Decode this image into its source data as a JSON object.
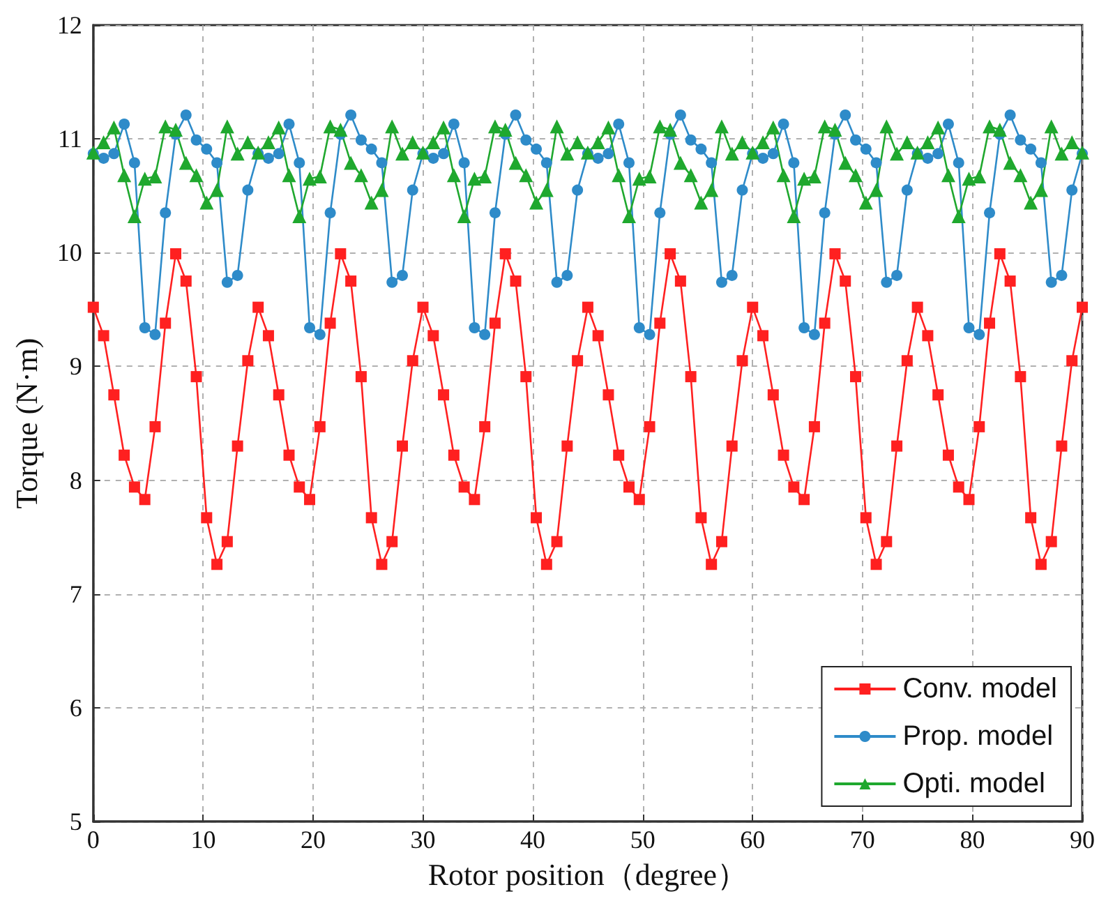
{
  "chart_data": {
    "type": "line",
    "xlabel": "Rotor position（degree）",
    "ylabel": "Torque (N·m)",
    "x": [
      0,
      0.9375,
      1.875,
      2.8125,
      3.75,
      4.6875,
      5.625,
      6.5625,
      7.5,
      8.4375,
      9.375,
      10.3125,
      11.25,
      12.1875,
      13.125,
      14.0625,
      15,
      15.9375,
      16.875,
      17.8125,
      18.75,
      19.6875,
      20.625,
      21.5625,
      22.5,
      23.4375,
      24.375,
      25.3125,
      26.25,
      27.1875,
      28.125,
      29.0625,
      30,
      30.9375,
      31.875,
      32.8125,
      33.75,
      34.6875,
      35.625,
      36.5625,
      37.5,
      38.4375,
      39.375,
      40.3125,
      41.25,
      42.1875,
      43.125,
      44.0625,
      45,
      45.9375,
      46.875,
      47.8125,
      48.75,
      49.6875,
      50.625,
      51.5625,
      52.5,
      53.4375,
      54.375,
      55.3125,
      56.25,
      57.1875,
      58.125,
      59.0625,
      60,
      60.9375,
      61.875,
      62.8125,
      63.75,
      64.6875,
      65.625,
      66.5625,
      67.5,
      68.4375,
      69.375,
      70.3125,
      71.25,
      72.1875,
      73.125,
      74.0625,
      75,
      75.9375,
      76.875,
      77.8125,
      78.75,
      79.6875,
      80.625,
      81.5625,
      82.5,
      83.4375,
      84.375,
      85.3125,
      86.25,
      87.1875,
      88.125,
      89.0625,
      90
    ],
    "series": [
      {
        "name": "Conv. model",
        "color": "#ff2020",
        "marker": "square",
        "values": [
          9.52,
          9.27,
          8.75,
          8.22,
          7.94,
          7.83,
          8.47,
          9.38,
          9.99,
          9.75,
          8.91,
          7.67,
          7.26,
          7.46,
          8.3,
          9.05,
          9.52,
          9.27,
          8.75,
          8.22,
          7.94,
          7.83,
          8.47,
          9.38,
          9.99,
          9.75,
          8.91,
          7.67,
          7.26,
          7.46,
          8.3,
          9.05,
          9.52,
          9.27,
          8.75,
          8.22,
          7.94,
          7.83,
          8.47,
          9.38,
          9.99,
          9.75,
          8.91,
          7.67,
          7.26,
          7.46,
          8.3,
          9.05,
          9.52,
          9.27,
          8.75,
          8.22,
          7.94,
          7.83,
          8.47,
          9.38,
          9.99,
          9.75,
          8.91,
          7.67,
          7.26,
          7.46,
          8.3,
          9.05,
          9.52,
          9.27,
          8.75,
          8.22,
          7.94,
          7.83,
          8.47,
          9.38,
          9.99,
          9.75,
          8.91,
          7.67,
          7.26,
          7.46,
          8.3,
          9.05,
          9.52,
          9.27,
          8.75,
          8.22,
          7.94,
          7.83,
          8.47,
          9.38,
          9.99,
          9.75,
          8.91,
          7.67,
          7.26,
          7.46,
          8.3,
          9.05,
          9.52
        ]
      },
      {
        "name": "Prop. model",
        "color": "#2e8bc9",
        "marker": "circle",
        "values": [
          10.87,
          10.83,
          10.87,
          11.13,
          10.79,
          9.34,
          9.28,
          10.35,
          11.04,
          11.21,
          10.99,
          10.91,
          10.79,
          9.74,
          9.8,
          10.55,
          10.87,
          10.83,
          10.87,
          11.13,
          10.79,
          9.34,
          9.28,
          10.35,
          11.04,
          11.21,
          10.99,
          10.91,
          10.79,
          9.74,
          9.8,
          10.55,
          10.87,
          10.83,
          10.87,
          11.13,
          10.79,
          9.34,
          9.28,
          10.35,
          11.04,
          11.21,
          10.99,
          10.91,
          10.79,
          9.74,
          9.8,
          10.55,
          10.87,
          10.83,
          10.87,
          11.13,
          10.79,
          9.34,
          9.28,
          10.35,
          11.04,
          11.21,
          10.99,
          10.91,
          10.79,
          9.74,
          9.8,
          10.55,
          10.87,
          10.83,
          10.87,
          11.13,
          10.79,
          9.34,
          9.28,
          10.35,
          11.04,
          11.21,
          10.99,
          10.91,
          10.79,
          9.74,
          9.8,
          10.55,
          10.87,
          10.83,
          10.87,
          11.13,
          10.79,
          9.34,
          9.28,
          10.35,
          11.04,
          11.21,
          10.99,
          10.91,
          10.79,
          9.74,
          9.8,
          10.55,
          10.87
        ]
      },
      {
        "name": "Opti. model",
        "color": "#1fa82e",
        "marker": "triangle",
        "values": [
          10.88,
          10.97,
          11.1,
          10.68,
          10.32,
          10.65,
          10.67,
          11.11,
          11.08,
          10.79,
          10.68,
          10.44,
          10.55,
          11.11,
          10.87,
          10.97,
          10.88,
          10.97,
          11.1,
          10.68,
          10.32,
          10.65,
          10.67,
          11.11,
          11.08,
          10.79,
          10.68,
          10.44,
          10.55,
          11.11,
          10.87,
          10.97,
          10.88,
          10.97,
          11.1,
          10.68,
          10.32,
          10.65,
          10.67,
          11.11,
          11.08,
          10.79,
          10.68,
          10.44,
          10.55,
          11.11,
          10.87,
          10.97,
          10.88,
          10.97,
          11.1,
          10.68,
          10.32,
          10.65,
          10.67,
          11.11,
          11.08,
          10.79,
          10.68,
          10.44,
          10.55,
          11.11,
          10.87,
          10.97,
          10.88,
          10.97,
          11.1,
          10.68,
          10.32,
          10.65,
          10.67,
          11.11,
          11.08,
          10.79,
          10.68,
          10.44,
          10.55,
          11.11,
          10.87,
          10.97,
          10.88,
          10.97,
          11.1,
          10.68,
          10.32,
          10.65,
          10.67,
          11.11,
          11.08,
          10.79,
          10.68,
          10.44,
          10.55,
          11.11,
          10.87,
          10.97,
          10.88
        ]
      }
    ],
    "xlim": [
      0,
      90
    ],
    "xticks": [
      0,
      10,
      20,
      30,
      40,
      50,
      60,
      70,
      80,
      90
    ],
    "ylim": [
      5,
      12
    ],
    "yticks": [
      5,
      6,
      7,
      8,
      9,
      10,
      11,
      12
    ],
    "grid": true,
    "legend": "bottom right",
    "line_style": "solid"
  }
}
